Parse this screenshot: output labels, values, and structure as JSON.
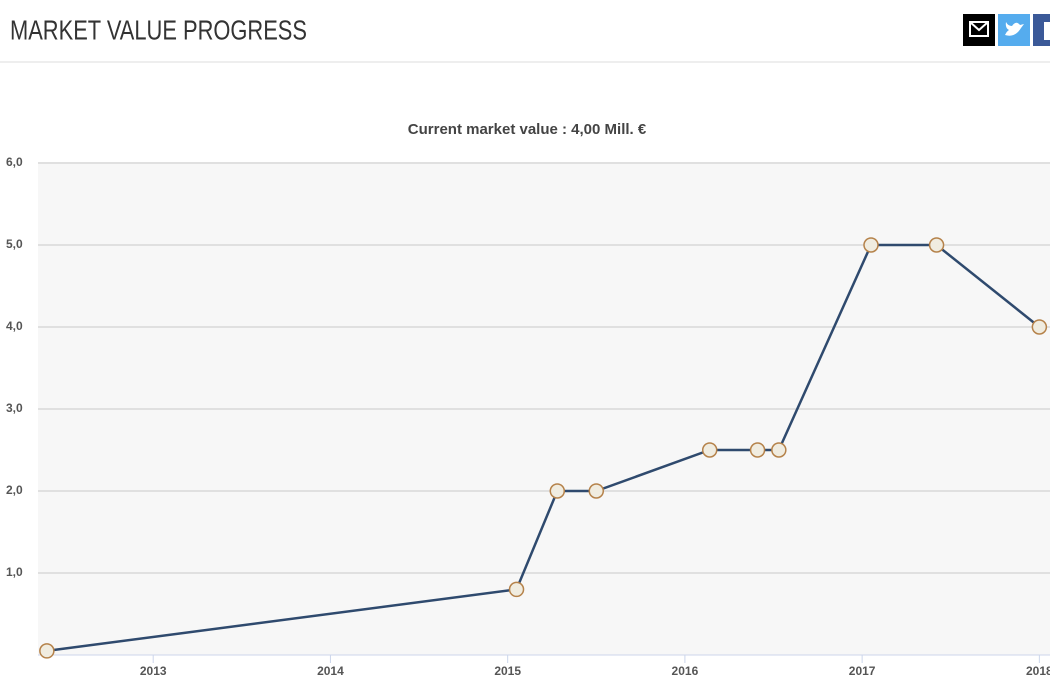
{
  "header": {
    "title": "MARKET VALUE PROGRESS"
  },
  "chart_data": {
    "type": "line",
    "title": "Current market value : 4,00 Mill. €",
    "x": [
      2012.4,
      2015.05,
      2015.28,
      2015.5,
      2016.14,
      2016.41,
      2016.53,
      2017.05,
      2017.42,
      2018.0
    ],
    "values": [
      0.05,
      0.8,
      2.0,
      2.0,
      2.5,
      2.5,
      2.5,
      5.0,
      5.0,
      4.0
    ],
    "color": "#2f4a6e",
    "xlim": [
      2012.35,
      2018.06
    ],
    "xticks": [
      2013,
      2014,
      2015,
      2016,
      2017,
      2018
    ],
    "ylim": [
      0,
      6
    ],
    "yticks": [
      {
        "value": 1,
        "label": "1,0"
      },
      {
        "value": 2,
        "label": "2,0"
      },
      {
        "value": 3,
        "label": "3,0"
      },
      {
        "value": 4,
        "label": "4,0"
      },
      {
        "value": 5,
        "label": "5,0"
      },
      {
        "value": 6,
        "label": "6,0"
      }
    ],
    "grid": true
  }
}
